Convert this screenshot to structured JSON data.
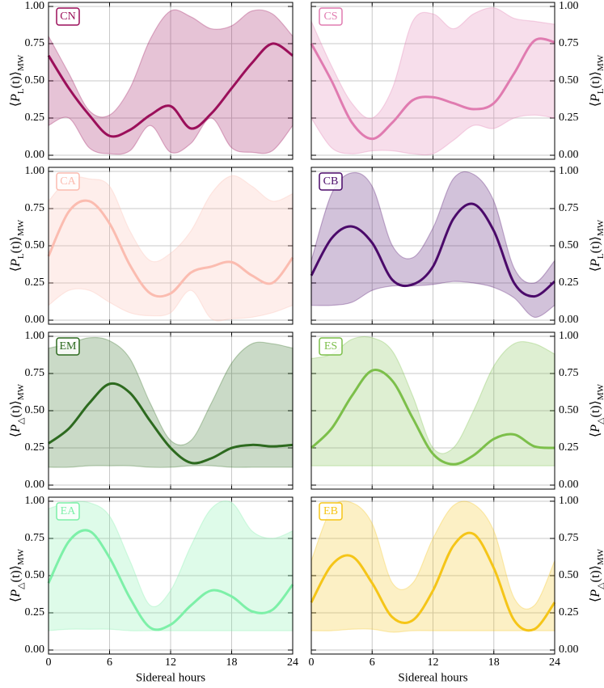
{
  "chart_data": [
    {
      "type": "line",
      "x": [
        0,
        2,
        4,
        6,
        8,
        10,
        12,
        14,
        16,
        18,
        20,
        22,
        24
      ],
      "xlim": [
        0,
        24
      ],
      "xticks": [
        0,
        6,
        12,
        18,
        24
      ],
      "ylim": [
        -0.027,
        1.027
      ],
      "yticks": [
        {
          "value": 0,
          "label": "0.00"
        },
        {
          "value": 0.25,
          "label": "0.25"
        },
        {
          "value": 0.5,
          "label": "0.50"
        },
        {
          "value": 0.75,
          "label": "0.75"
        },
        {
          "value": 1,
          "label": "1.00"
        }
      ],
      "ylabel": [
        "⟨",
        "P",
        "L",
        "(t)⟩",
        "MW"
      ],
      "yaxis_side": "left",
      "grid": true,
      "series": [
        {
          "name": "CN",
          "color": "#9b0f5a",
          "values": [
            0.67,
            0.45,
            0.27,
            0.13,
            0.17,
            0.27,
            0.33,
            0.18,
            0.28,
            0.45,
            0.62,
            0.75,
            0.67
          ],
          "lower": [
            0.2,
            0.25,
            0.05,
            0.01,
            0.03,
            0.2,
            0.02,
            0.08,
            0.25,
            0.05,
            0.02,
            0.03,
            0.2
          ],
          "upper": [
            0.8,
            0.55,
            0.3,
            0.27,
            0.45,
            0.78,
            0.97,
            0.93,
            0.85,
            0.87,
            0.97,
            0.95,
            0.8
          ]
        }
      ]
    },
    {
      "type": "line",
      "x": [
        0,
        2,
        4,
        6,
        8,
        10,
        12,
        14,
        16,
        18,
        20,
        22,
        24
      ],
      "xlim": [
        0,
        24
      ],
      "xticks": [
        0,
        6,
        12,
        18,
        24
      ],
      "ylim": [
        -0.027,
        1.027
      ],
      "yticks": [
        {
          "value": 0,
          "label": "0.00"
        },
        {
          "value": 0.25,
          "label": "0.25"
        },
        {
          "value": 0.5,
          "label": "0.50"
        },
        {
          "value": 0.75,
          "label": "0.75"
        },
        {
          "value": 1,
          "label": "1.00"
        }
      ],
      "ylabel": [
        "⟨",
        "P",
        "L",
        "(t)⟩",
        "MW"
      ],
      "yaxis_side": "right",
      "grid": true,
      "series": [
        {
          "name": "CS",
          "color": "#e07bb0",
          "values": [
            0.75,
            0.5,
            0.22,
            0.11,
            0.22,
            0.37,
            0.39,
            0.35,
            0.31,
            0.35,
            0.55,
            0.77,
            0.76
          ],
          "lower": [
            0.25,
            0.05,
            0.01,
            0.03,
            0.03,
            0.01,
            0.01,
            0.1,
            0.2,
            0.18,
            0.25,
            0.27,
            0.25
          ],
          "upper": [
            0.9,
            0.6,
            0.35,
            0.25,
            0.45,
            0.9,
            0.95,
            0.85,
            0.95,
            0.99,
            0.92,
            0.9,
            0.88
          ]
        }
      ]
    },
    {
      "type": "line",
      "x": [
        0,
        2,
        4,
        6,
        8,
        10,
        12,
        14,
        16,
        18,
        20,
        22,
        24
      ],
      "xlim": [
        0,
        24
      ],
      "xticks": [
        0,
        6,
        12,
        18,
        24
      ],
      "ylim": [
        -0.027,
        1.027
      ],
      "yticks": [
        {
          "value": 0,
          "label": "0.00"
        },
        {
          "value": 0.25,
          "label": "0.25"
        },
        {
          "value": 0.5,
          "label": "0.50"
        },
        {
          "value": 0.75,
          "label": "0.75"
        },
        {
          "value": 1,
          "label": "1.00"
        }
      ],
      "ylabel": [
        "⟨",
        "P",
        "L",
        "(t)⟩",
        "MW"
      ],
      "yaxis_side": "left",
      "grid": true,
      "series": [
        {
          "name": "CA",
          "color": "#fbbcb0",
          "values": [
            0.43,
            0.73,
            0.8,
            0.65,
            0.37,
            0.18,
            0.18,
            0.32,
            0.36,
            0.39,
            0.3,
            0.25,
            0.42
          ],
          "lower": [
            0.1,
            0.2,
            0.2,
            0.12,
            0.05,
            0.03,
            0.05,
            0.2,
            0.01,
            0.01,
            0.02,
            0.05,
            0.1
          ],
          "upper": [
            0.8,
            0.95,
            0.95,
            0.9,
            0.6,
            0.4,
            0.45,
            0.6,
            0.85,
            0.97,
            0.9,
            0.8,
            0.85
          ]
        }
      ]
    },
    {
      "type": "line",
      "x": [
        0,
        2,
        4,
        6,
        8,
        10,
        12,
        14,
        16,
        18,
        20,
        22,
        24
      ],
      "xlim": [
        0,
        24
      ],
      "xticks": [
        0,
        6,
        12,
        18,
        24
      ],
      "ylim": [
        -0.027,
        1.027
      ],
      "yticks": [
        {
          "value": 0,
          "label": "0.00"
        },
        {
          "value": 0.25,
          "label": "0.25"
        },
        {
          "value": 0.5,
          "label": "0.50"
        },
        {
          "value": 0.75,
          "label": "0.75"
        },
        {
          "value": 1,
          "label": "1.00"
        }
      ],
      "ylabel": [
        "⟨",
        "P",
        "L",
        "(t)⟩",
        "MW"
      ],
      "yaxis_side": "right",
      "grid": true,
      "series": [
        {
          "name": "CB",
          "color": "#4b0a6a",
          "values": [
            0.3,
            0.55,
            0.63,
            0.52,
            0.27,
            0.24,
            0.36,
            0.68,
            0.78,
            0.6,
            0.25,
            0.16,
            0.26
          ],
          "lower": [
            0.1,
            0.1,
            0.12,
            0.2,
            0.23,
            0.23,
            0.24,
            0.26,
            0.25,
            0.22,
            0.15,
            0.02,
            0.1
          ],
          "upper": [
            0.4,
            0.85,
            0.99,
            0.9,
            0.5,
            0.42,
            0.62,
            0.95,
            0.98,
            0.8,
            0.35,
            0.25,
            0.4
          ]
        }
      ]
    },
    {
      "type": "line",
      "x": [
        0,
        2,
        4,
        6,
        8,
        10,
        12,
        14,
        16,
        18,
        20,
        22,
        24
      ],
      "xlim": [
        0,
        24
      ],
      "xticks": [
        0,
        6,
        12,
        18,
        24
      ],
      "ylim": [
        -0.027,
        1.027
      ],
      "yticks": [
        {
          "value": 0,
          "label": "0.00"
        },
        {
          "value": 0.25,
          "label": "0.25"
        },
        {
          "value": 0.5,
          "label": "0.50"
        },
        {
          "value": 0.75,
          "label": "0.75"
        },
        {
          "value": 1,
          "label": "1.00"
        }
      ],
      "ylabel": [
        "⟨",
        "P",
        "△",
        "(t)⟩",
        "MW"
      ],
      "yaxis_side": "left",
      "grid": true,
      "series": [
        {
          "name": "EM",
          "color": "#2d6a1f",
          "values": [
            0.28,
            0.38,
            0.55,
            0.68,
            0.62,
            0.43,
            0.25,
            0.15,
            0.18,
            0.25,
            0.27,
            0.26,
            0.27
          ],
          "lower": [
            0.12,
            0.12,
            0.13,
            0.13,
            0.13,
            0.12,
            0.12,
            0.13,
            0.13,
            0.12,
            0.12,
            0.12,
            0.12
          ],
          "upper": [
            0.92,
            0.95,
            0.99,
            0.97,
            0.85,
            0.55,
            0.3,
            0.3,
            0.55,
            0.82,
            0.95,
            0.95,
            0.92
          ]
        }
      ]
    },
    {
      "type": "line",
      "x": [
        0,
        2,
        4,
        6,
        8,
        10,
        12,
        14,
        16,
        18,
        20,
        22,
        24
      ],
      "xlim": [
        0,
        24
      ],
      "xticks": [
        0,
        6,
        12,
        18,
        24
      ],
      "ylim": [
        -0.027,
        1.027
      ],
      "yticks": [
        {
          "value": 0,
          "label": "0.00"
        },
        {
          "value": 0.25,
          "label": "0.25"
        },
        {
          "value": 0.5,
          "label": "0.50"
        },
        {
          "value": 0.75,
          "label": "0.75"
        },
        {
          "value": 1,
          "label": "1.00"
        }
      ],
      "ylabel": [
        "⟨",
        "P",
        "△",
        "(t)⟩",
        "MW"
      ],
      "yaxis_side": "right",
      "grid": true,
      "series": [
        {
          "name": "ES",
          "color": "#7cbf4a",
          "values": [
            0.25,
            0.38,
            0.6,
            0.77,
            0.7,
            0.45,
            0.21,
            0.14,
            0.2,
            0.31,
            0.34,
            0.26,
            0.25
          ],
          "lower": [
            0.13,
            0.13,
            0.13,
            0.13,
            0.13,
            0.13,
            0.13,
            0.13,
            0.13,
            0.13,
            0.13,
            0.13,
            0.13
          ],
          "upper": [
            0.85,
            0.88,
            0.98,
            0.99,
            0.9,
            0.6,
            0.25,
            0.25,
            0.5,
            0.8,
            0.95,
            0.95,
            0.88
          ]
        }
      ]
    },
    {
      "type": "line",
      "x": [
        0,
        2,
        4,
        6,
        8,
        10,
        12,
        14,
        16,
        18,
        20,
        22,
        24
      ],
      "xlim": [
        0,
        24
      ],
      "xticks": [
        0,
        6,
        12,
        18,
        24
      ],
      "ylim": [
        -0.027,
        1.027
      ],
      "yticks": [
        {
          "value": 0,
          "label": "0.00"
        },
        {
          "value": 0.25,
          "label": "0.25"
        },
        {
          "value": 0.5,
          "label": "0.50"
        },
        {
          "value": 0.75,
          "label": "0.75"
        },
        {
          "value": 1,
          "label": "1.00"
        }
      ],
      "ylabel": [
        "⟨",
        "P",
        "△",
        "(t)⟩",
        "MW"
      ],
      "yaxis_side": "left",
      "grid": true,
      "xlabel": "Sidereal hours",
      "series": [
        {
          "name": "EA",
          "color": "#7df0a8",
          "values": [
            0.45,
            0.73,
            0.8,
            0.62,
            0.35,
            0.15,
            0.17,
            0.3,
            0.4,
            0.36,
            0.26,
            0.27,
            0.44
          ],
          "lower": [
            0.13,
            0.14,
            0.14,
            0.14,
            0.13,
            0.13,
            0.13,
            0.13,
            0.13,
            0.13,
            0.13,
            0.13,
            0.13
          ],
          "upper": [
            0.95,
            0.99,
            0.99,
            0.9,
            0.6,
            0.3,
            0.4,
            0.7,
            0.95,
            0.99,
            0.8,
            0.75,
            0.8
          ]
        }
      ]
    },
    {
      "type": "line",
      "x": [
        0,
        2,
        4,
        6,
        8,
        10,
        12,
        14,
        16,
        18,
        20,
        22,
        24
      ],
      "xlim": [
        0,
        24
      ],
      "xticks": [
        0,
        6,
        12,
        18,
        24
      ],
      "ylim": [
        -0.027,
        1.027
      ],
      "yticks": [
        {
          "value": 0,
          "label": "0.00"
        },
        {
          "value": 0.25,
          "label": "0.25"
        },
        {
          "value": 0.5,
          "label": "0.50"
        },
        {
          "value": 0.75,
          "label": "0.75"
        },
        {
          "value": 1,
          "label": "1.00"
        }
      ],
      "ylabel": [
        "⟨",
        "P",
        "△",
        "(t)⟩",
        "MW"
      ],
      "yaxis_side": "right",
      "grid": true,
      "xlabel": "Sidereal hours",
      "series": [
        {
          "name": "EB",
          "color": "#f5c518",
          "values": [
            0.32,
            0.57,
            0.63,
            0.45,
            0.22,
            0.2,
            0.4,
            0.7,
            0.78,
            0.55,
            0.2,
            0.14,
            0.32
          ],
          "lower": [
            0.13,
            0.13,
            0.14,
            0.14,
            0.12,
            0.13,
            0.13,
            0.13,
            0.13,
            0.13,
            0.13,
            0.13,
            0.13
          ],
          "upper": [
            0.6,
            0.95,
            0.99,
            0.85,
            0.45,
            0.45,
            0.75,
            0.97,
            0.98,
            0.8,
            0.35,
            0.3,
            0.6
          ]
        }
      ]
    }
  ]
}
